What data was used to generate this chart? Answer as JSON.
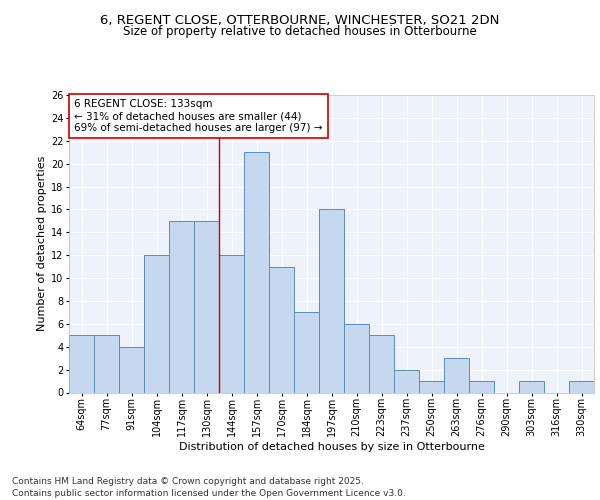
{
  "title1": "6, REGENT CLOSE, OTTERBOURNE, WINCHESTER, SO21 2DN",
  "title2": "Size of property relative to detached houses in Otterbourne",
  "xlabel": "Distribution of detached houses by size in Otterbourne",
  "ylabel": "Number of detached properties",
  "categories": [
    "64sqm",
    "77sqm",
    "91sqm",
    "104sqm",
    "117sqm",
    "130sqm",
    "144sqm",
    "157sqm",
    "170sqm",
    "184sqm",
    "197sqm",
    "210sqm",
    "223sqm",
    "237sqm",
    "250sqm",
    "263sqm",
    "276sqm",
    "290sqm",
    "303sqm",
    "316sqm",
    "330sqm"
  ],
  "values": [
    5,
    5,
    4,
    12,
    15,
    15,
    12,
    21,
    11,
    7,
    16,
    6,
    5,
    2,
    1,
    3,
    1,
    0,
    1,
    0,
    1
  ],
  "bar_color": "#c5d8f0",
  "bar_edge_color": "#5b8db8",
  "red_line_x": 5.5,
  "annotation_title": "6 REGENT CLOSE: 133sqm",
  "annotation_line1": "← 31% of detached houses are smaller (44)",
  "annotation_line2": "69% of semi-detached houses are larger (97) →",
  "ylim": [
    0,
    26
  ],
  "yticks": [
    0,
    2,
    4,
    6,
    8,
    10,
    12,
    14,
    16,
    18,
    20,
    22,
    24,
    26
  ],
  "bg_color": "#eef2fa",
  "footer": "Contains HM Land Registry data © Crown copyright and database right 2025.\nContains public sector information licensed under the Open Government Licence v3.0.",
  "title_fontsize": 9.5,
  "subtitle_fontsize": 8.5,
  "axis_label_fontsize": 8,
  "tick_fontsize": 7,
  "footer_fontsize": 6.5,
  "annot_fontsize": 7.5
}
